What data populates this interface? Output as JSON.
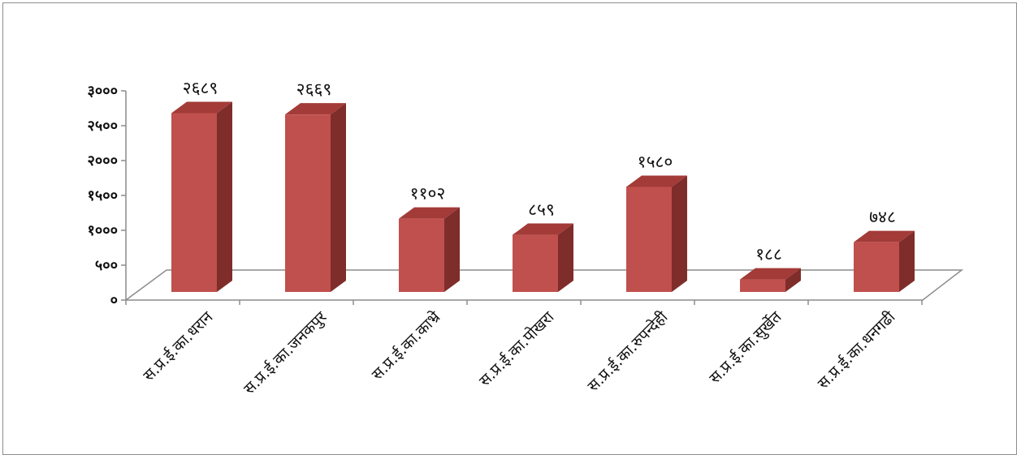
{
  "chart_data": {
    "type": "bar",
    "style": "3d-column",
    "categories": [
      "स.प्र.ई.का.धरान",
      "स.प्र.ई.का.जनकपुर",
      "स.प्र.ई.का.काभ्रे",
      "स.प्र.ई.का.पोखरा",
      "स.प्र.ई.का.रुपन्देही",
      "स.प्र.ई.का.सुर्खेत",
      "स.प्र.ई.का.धनगढी"
    ],
    "values": [
      2689,
      2669,
      1102,
      859,
      1580,
      188,
      748
    ],
    "value_labels": [
      "२६८९",
      "२६६९",
      "११०२",
      "८५९",
      "१५८०",
      "१८८",
      "७४८"
    ],
    "y_ticks": [
      0,
      500,
      1000,
      1500,
      2000,
      2500,
      3000
    ],
    "y_tick_labels": [
      "०",
      "५००",
      "१०००",
      "१५००",
      "२०००",
      "२५००",
      "३०००"
    ],
    "ylim": [
      0,
      3000
    ],
    "title": "",
    "xlabel": "",
    "ylabel": "",
    "legend": "none",
    "grid": false,
    "colors": {
      "bar_front": "#c0504d",
      "bar_side": "#7f2d2b",
      "bar_top": "#a33b38",
      "axis": "#8c8c8c",
      "frame": "#8c8c8c"
    }
  }
}
